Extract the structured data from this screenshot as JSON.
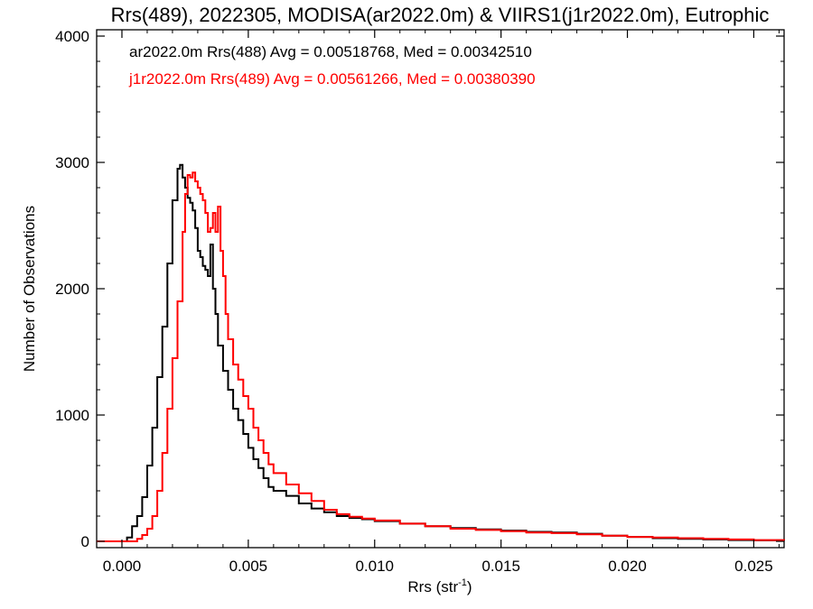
{
  "chart_data": {
    "type": "line",
    "step": true,
    "title": "Rrs(489), 2022305, MODISA(ar2022.0m) & VIIRS1(j1r2022.0m), Eutrophic",
    "xlabel": "Rrs (str",
    "xlabel_sup": "-1",
    "xlabel_close": ")",
    "ylabel": "Number of Observations",
    "xlim": [
      -0.001,
      0.0262
    ],
    "ylim": [
      -50,
      4050
    ],
    "xticks": [
      0.0,
      0.005,
      0.01,
      0.015,
      0.02,
      0.025
    ],
    "xtick_labels": [
      "0.000",
      "0.005",
      "0.010",
      "0.015",
      "0.020",
      "0.025"
    ],
    "yticks": [
      0,
      1000,
      2000,
      3000,
      4000
    ],
    "ytick_labels": [
      "0",
      "1000",
      "2000",
      "3000",
      "4000"
    ],
    "grid": false,
    "legend_position": "top-left",
    "series": [
      {
        "name": "ar2022.0m Rrs(488)",
        "label": "ar2022.0m Rrs(488) Avg = 0.00518768, Med = 0.00342510",
        "color": "#000000",
        "points": [
          [
            -0.001,
            0
          ],
          [
            0.0,
            0
          ],
          [
            0.0002,
            30
          ],
          [
            0.0004,
            120
          ],
          [
            0.0006,
            200
          ],
          [
            0.0008,
            350
          ],
          [
            0.001,
            600
          ],
          [
            0.0012,
            900
          ],
          [
            0.0014,
            1300
          ],
          [
            0.0016,
            1700
          ],
          [
            0.0018,
            2200
          ],
          [
            0.002,
            2700
          ],
          [
            0.0022,
            2950
          ],
          [
            0.0023,
            2980
          ],
          [
            0.0024,
            2880
          ],
          [
            0.0025,
            2800
          ],
          [
            0.0026,
            2720
          ],
          [
            0.0027,
            2680
          ],
          [
            0.0028,
            2620
          ],
          [
            0.0029,
            2480
          ],
          [
            0.003,
            2300
          ],
          [
            0.0031,
            2250
          ],
          [
            0.0032,
            2180
          ],
          [
            0.0033,
            2150
          ],
          [
            0.0034,
            2100
          ],
          [
            0.0035,
            2350
          ],
          [
            0.0036,
            2000
          ],
          [
            0.0037,
            1800
          ],
          [
            0.0038,
            1550
          ],
          [
            0.004,
            1350
          ],
          [
            0.0042,
            1200
          ],
          [
            0.0044,
            1050
          ],
          [
            0.0046,
            960
          ],
          [
            0.0048,
            850
          ],
          [
            0.005,
            740
          ],
          [
            0.0052,
            650
          ],
          [
            0.0054,
            580
          ],
          [
            0.0056,
            500
          ],
          [
            0.0058,
            430
          ],
          [
            0.006,
            400
          ],
          [
            0.0065,
            360
          ],
          [
            0.007,
            300
          ],
          [
            0.0075,
            260
          ],
          [
            0.008,
            230
          ],
          [
            0.0085,
            200
          ],
          [
            0.009,
            185
          ],
          [
            0.0095,
            175
          ],
          [
            0.01,
            160
          ],
          [
            0.011,
            140
          ],
          [
            0.012,
            120
          ],
          [
            0.013,
            105
          ],
          [
            0.014,
            95
          ],
          [
            0.015,
            85
          ],
          [
            0.016,
            75
          ],
          [
            0.017,
            70
          ],
          [
            0.018,
            60
          ],
          [
            0.019,
            45
          ],
          [
            0.02,
            35
          ],
          [
            0.021,
            25
          ],
          [
            0.022,
            20
          ],
          [
            0.023,
            15
          ],
          [
            0.024,
            10
          ],
          [
            0.025,
            8
          ],
          [
            0.0262,
            5
          ]
        ]
      },
      {
        "name": "j1r2022.0m Rrs(489)",
        "label": "j1r2022.0m Rrs(489) Avg = 0.00561266, Med = 0.00380390",
        "color": "#ff0000",
        "points": [
          [
            -0.001,
            0
          ],
          [
            0.0004,
            0
          ],
          [
            0.0006,
            20
          ],
          [
            0.0008,
            50
          ],
          [
            0.001,
            100
          ],
          [
            0.0012,
            200
          ],
          [
            0.0014,
            400
          ],
          [
            0.0016,
            700
          ],
          [
            0.0018,
            1050
          ],
          [
            0.002,
            1450
          ],
          [
            0.0022,
            1900
          ],
          [
            0.0024,
            2450
          ],
          [
            0.0025,
            2750
          ],
          [
            0.0026,
            2900
          ],
          [
            0.0027,
            2880
          ],
          [
            0.0028,
            2920
          ],
          [
            0.0029,
            2850
          ],
          [
            0.003,
            2800
          ],
          [
            0.0031,
            2750
          ],
          [
            0.0032,
            2700
          ],
          [
            0.0033,
            2600
          ],
          [
            0.0034,
            2450
          ],
          [
            0.0035,
            2480
          ],
          [
            0.0036,
            2600
          ],
          [
            0.0037,
            2450
          ],
          [
            0.0038,
            2650
          ],
          [
            0.0039,
            2300
          ],
          [
            0.004,
            2100
          ],
          [
            0.0041,
            1800
          ],
          [
            0.0042,
            1600
          ],
          [
            0.0044,
            1400
          ],
          [
            0.0046,
            1280
          ],
          [
            0.0048,
            1150
          ],
          [
            0.005,
            1050
          ],
          [
            0.0052,
            900
          ],
          [
            0.0054,
            800
          ],
          [
            0.0056,
            700
          ],
          [
            0.0058,
            610
          ],
          [
            0.006,
            540
          ],
          [
            0.0065,
            450
          ],
          [
            0.007,
            380
          ],
          [
            0.0075,
            320
          ],
          [
            0.008,
            250
          ],
          [
            0.0085,
            215
          ],
          [
            0.009,
            195
          ],
          [
            0.0095,
            180
          ],
          [
            0.01,
            165
          ],
          [
            0.011,
            140
          ],
          [
            0.012,
            120
          ],
          [
            0.013,
            100
          ],
          [
            0.014,
            90
          ],
          [
            0.015,
            80
          ],
          [
            0.016,
            70
          ],
          [
            0.017,
            65
          ],
          [
            0.018,
            55
          ],
          [
            0.019,
            45
          ],
          [
            0.02,
            35
          ],
          [
            0.021,
            30
          ],
          [
            0.022,
            25
          ],
          [
            0.023,
            20
          ],
          [
            0.024,
            15
          ],
          [
            0.025,
            10
          ],
          [
            0.0262,
            8
          ]
        ]
      }
    ]
  }
}
